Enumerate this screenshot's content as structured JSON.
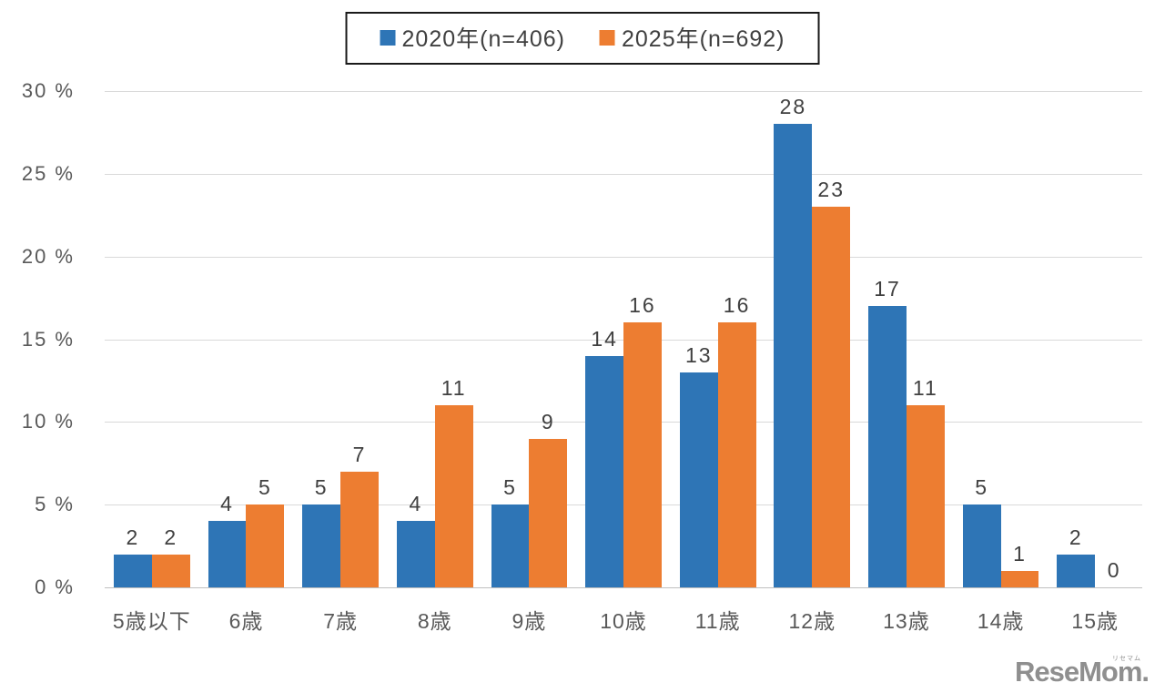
{
  "legend": {
    "items": [
      {
        "label": "2020年(n=406)",
        "color": "#2e75b6"
      },
      {
        "label": "2025年(n=692)",
        "color": "#ed7d31"
      }
    ]
  },
  "chart_data": {
    "type": "bar",
    "categories": [
      "5歳以下",
      "6歳",
      "7歳",
      "8歳",
      "9歳",
      "10歳",
      "11歳",
      "12歳",
      "13歳",
      "14歳",
      "15歳"
    ],
    "series": [
      {
        "name": "2020年(n=406)",
        "color": "#2e75b6",
        "values": [
          2,
          4,
          5,
          4,
          5,
          14,
          13,
          28,
          17,
          5,
          2
        ]
      },
      {
        "name": "2025年(n=692)",
        "color": "#ed7d31",
        "values": [
          2,
          5,
          7,
          11,
          9,
          16,
          16,
          23,
          11,
          1,
          0
        ]
      }
    ],
    "title": "",
    "xlabel": "",
    "ylabel": "%",
    "ylim": [
      0,
      30
    ],
    "ytick_step": 5,
    "ytick_labels": [
      "0 %",
      "5 %",
      "10 %",
      "15 %",
      "20 %",
      "25 %",
      "30 %"
    ],
    "grid": true,
    "legend_position": "top",
    "data_labels": true
  },
  "colors": {
    "grid": "#d9d9d9",
    "axis_text": "#595959",
    "value_label_text": "#404040",
    "legend_border": "#1a1a1a",
    "watermark": "#8f8f8f"
  },
  "watermark": {
    "text": "ReseMom.",
    "furigana": "リセマム"
  }
}
